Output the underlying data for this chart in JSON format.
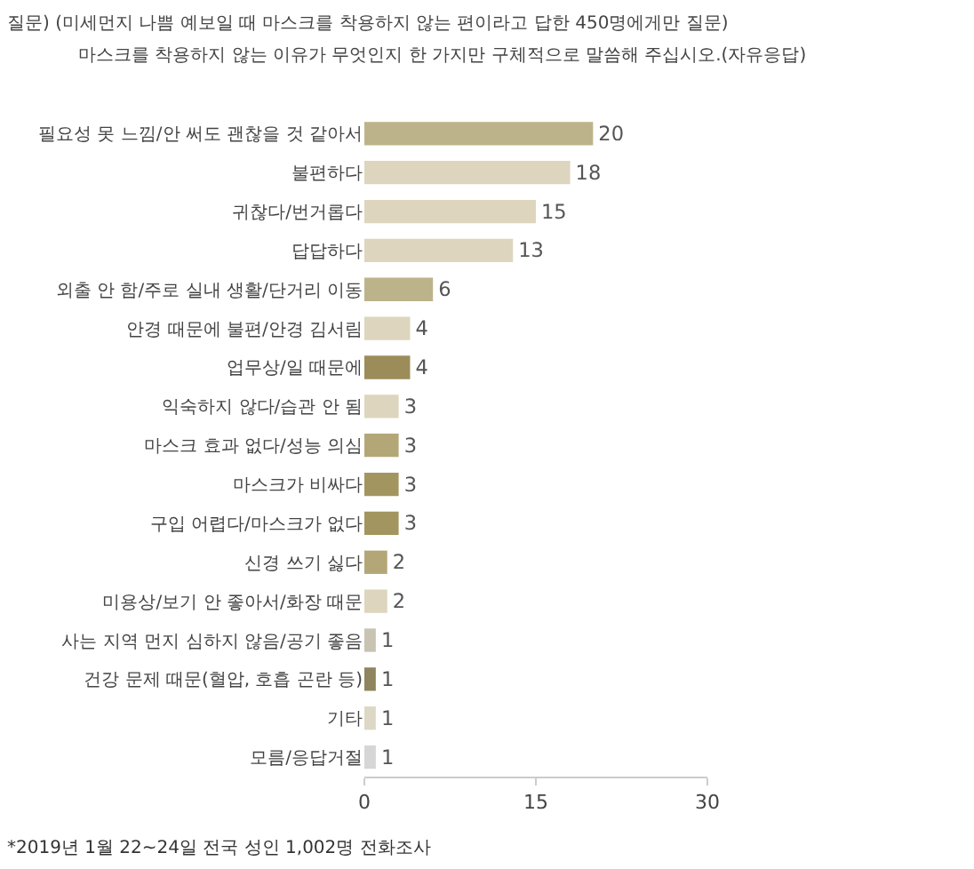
{
  "chart_data": {
    "type": "bar",
    "orientation": "horizontal",
    "title": "질문) (미세먼지 나쁨 예보일 때 마스크를 착용하지 않는 편이라고 답한 450명에게만 질문)",
    "subtitle": "마스크를 착용하지 않는 이유가 무엇인지 한 가지만 구체적으로 말씀해 주십시오.(자유응답)",
    "categories": [
      "필요성 못 느낌/안 써도 괜찮을 것 같아서",
      "불편하다",
      "귀찮다/번거롭다",
      "답답하다",
      "외출 안 함/주로 실내 생활/단거리 이동",
      "안경 때문에 불편/안경 김서림",
      "업무상/일 때문에",
      "익숙하지 않다/습관 안 됨",
      "마스크 효과 없다/성능 의심",
      "마스크가 비싸다",
      "구입 어렵다/마스크가 없다",
      "신경 쓰기 싫다",
      "미용상/보기 안 좋아서/화장 때문",
      "사는 지역 먼지 심하지 않음/공기 좋음",
      "건강 문제 때문(혈압, 호흡 곤란 등)",
      "기타",
      "모름/응답거절"
    ],
    "values": [
      20,
      18,
      15,
      13,
      6,
      4,
      4,
      3,
      3,
      3,
      3,
      2,
      2,
      1,
      1,
      1,
      1
    ],
    "colors": [
      "#bdb38a",
      "#ddd5bd",
      "#ddd5bd",
      "#ddd5bd",
      "#bdb38a",
      "#ddd5bd",
      "#9b8c5a",
      "#ddd5bd",
      "#b3a778",
      "#a3955f",
      "#a3955f",
      "#b3a778",
      "#ddd5bd",
      "#c8c3b2",
      "#8e855f",
      "#ddd8c6",
      "#d6d6d6"
    ],
    "xlim": [
      0,
      30
    ],
    "xticks": [
      0,
      15,
      30
    ],
    "data_labels": true,
    "annotations": [
      "*2019년 1월 22~24일 전국 성인 1,002명 전화조사"
    ]
  }
}
